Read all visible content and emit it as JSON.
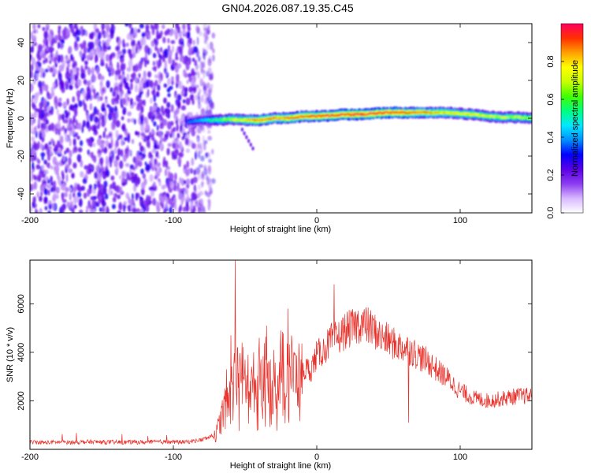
{
  "figure": {
    "title": "GN04.2026.087.19.35.C45"
  },
  "chart_data": [
    {
      "type": "heatmap",
      "xlabel": "Height of straight line (km)",
      "ylabel": "Frequency (Hz)",
      "xlim": [
        -200,
        150
      ],
      "ylim": [
        -50,
        50
      ],
      "xticks": [
        -200,
        -100,
        0,
        100
      ],
      "yticks": [
        -40,
        -20,
        0,
        20,
        40
      ],
      "grid": false,
      "colorbar": {
        "label": "Normalized spectral amplitude",
        "range": [
          0,
          1
        ],
        "ticks": [
          0.0,
          0.2,
          0.4,
          0.6,
          0.8
        ],
        "colormap": [
          "#ffffff",
          "#d8b8ff",
          "#8c3cf0",
          "#5a00e8",
          "#0000ff",
          "#0090ff",
          "#00e8ff",
          "#00ff80",
          "#40ff00",
          "#c8ff00",
          "#ffff00",
          "#ffa000",
          "#ff3000",
          "#ff0060"
        ]
      },
      "noise_region": {
        "x": [
          -200,
          -72
        ],
        "y": [
          -50,
          50
        ],
        "typical_amplitude": 0.25
      },
      "ridge": {
        "x": [
          -90,
          -80,
          -70,
          -60,
          -50,
          -40,
          -30,
          -20,
          -10,
          0,
          10,
          20,
          30,
          40,
          50,
          60,
          70,
          80,
          90,
          100,
          110,
          120,
          130,
          140,
          150
        ],
        "frequency": [
          -2,
          -1,
          -1,
          -0.5,
          -1,
          -1,
          0,
          0,
          1,
          1,
          1.5,
          2,
          2,
          2.5,
          3,
          3,
          3,
          3,
          3,
          2.5,
          2,
          1,
          0.5,
          0.5,
          0
        ],
        "amplitude": [
          0.35,
          0.45,
          0.6,
          0.7,
          0.8,
          0.9,
          0.85,
          0.9,
          0.92,
          0.95,
          0.97,
          0.98,
          1.0,
          0.98,
          0.95,
          0.95,
          0.9,
          0.85,
          0.8,
          0.78,
          0.75,
          0.72,
          0.7,
          0.7,
          0.68
        ],
        "width_hz": 3
      }
    },
    {
      "type": "line",
      "xlabel": "Height of straight line (km)",
      "ylabel": "SNR (10 * v/v)",
      "xlim": [
        -200,
        150
      ],
      "ylim": [
        0,
        7800
      ],
      "xticks": [
        -200,
        -100,
        0,
        100
      ],
      "yticks": [
        2000,
        4000,
        6000
      ],
      "grid": false,
      "series": [
        {
          "color": "#e8302a",
          "x": [
            -200,
            -190,
            -180,
            -170,
            -160,
            -150,
            -140,
            -130,
            -120,
            -110,
            -100,
            -90,
            -80,
            -75,
            -70,
            -66,
            -62,
            -58,
            -55,
            -52,
            -49,
            -46,
            -43,
            -40,
            -36,
            -32,
            -28,
            -24,
            -20,
            -16,
            -12,
            -8,
            -4,
            0,
            5,
            10,
            15,
            20,
            25,
            30,
            35,
            40,
            45,
            50,
            55,
            60,
            65,
            70,
            75,
            80,
            85,
            90,
            95,
            100,
            110,
            120,
            130,
            140,
            150
          ],
          "y": [
            300,
            280,
            300,
            290,
            310,
            300,
            290,
            300,
            290,
            310,
            300,
            310,
            400,
            500,
            650,
            1400,
            2100,
            2700,
            3000,
            3000,
            2600,
            2500,
            2700,
            2900,
            3300,
            2500,
            2700,
            3400,
            3700,
            3100,
            3000,
            3300,
            3300,
            3900,
            4100,
            4500,
            4600,
            4900,
            5000,
            5200,
            5100,
            4900,
            4600,
            4500,
            4300,
            4200,
            4100,
            3900,
            3700,
            3500,
            3200,
            3000,
            2700,
            2400,
            2100,
            2000,
            2100,
            2200,
            2200
          ],
          "spikes": [
            {
              "x": -63,
              "y": 3300
            },
            {
              "x": -60,
              "y": 4700
            },
            {
              "x": -57,
              "y": 7800
            },
            {
              "x": -52,
              "y": 4400
            },
            {
              "x": -48,
              "y": 3900
            },
            {
              "x": -44,
              "y": 4000
            },
            {
              "x": -40,
              "y": 4600
            },
            {
              "x": -35,
              "y": 5100
            },
            {
              "x": -30,
              "y": 4100
            },
            {
              "x": -25,
              "y": 4900
            },
            {
              "x": -20,
              "y": 5800
            },
            {
              "x": -15,
              "y": 3800
            },
            {
              "x": 12,
              "y": 6800
            },
            {
              "x": 64,
              "y": 6800
            },
            {
              "x": 64,
              "y": 1100
            }
          ]
        }
      ]
    }
  ]
}
